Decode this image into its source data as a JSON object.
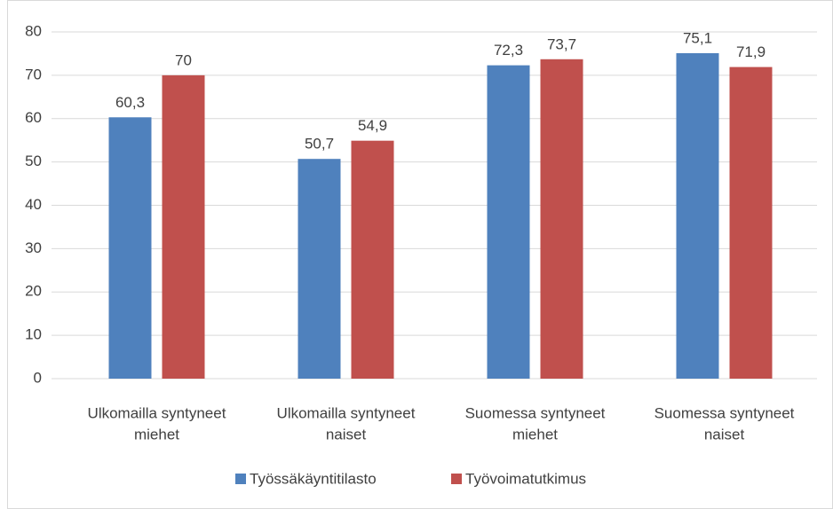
{
  "chart_data": {
    "type": "bar",
    "categories": [
      [
        "Ulkomailla syntyneet",
        "miehet"
      ],
      [
        "Ulkomailla syntyneet",
        "naiset"
      ],
      [
        "Suomessa syntyneet",
        "miehet"
      ],
      [
        "Suomessa syntyneet",
        "naiset"
      ]
    ],
    "series": [
      {
        "name": "Työssäkäyntitilasto",
        "color": "#4f81bd",
        "values": [
          60.3,
          50.7,
          72.3,
          75.1
        ],
        "value_labels": [
          "60,3",
          "50,7",
          "72,3",
          "75,1"
        ]
      },
      {
        "name": "Työvoimatutkimus",
        "color": "#c0504d",
        "values": [
          70,
          54.9,
          73.7,
          71.9
        ],
        "value_labels": [
          "70",
          "54,9",
          "73,7",
          "71,9"
        ]
      }
    ],
    "ylim": [
      0,
      80
    ],
    "yticks": [
      0,
      10,
      20,
      30,
      40,
      50,
      60,
      70,
      80
    ],
    "grid": true,
    "legend": "bottom"
  }
}
